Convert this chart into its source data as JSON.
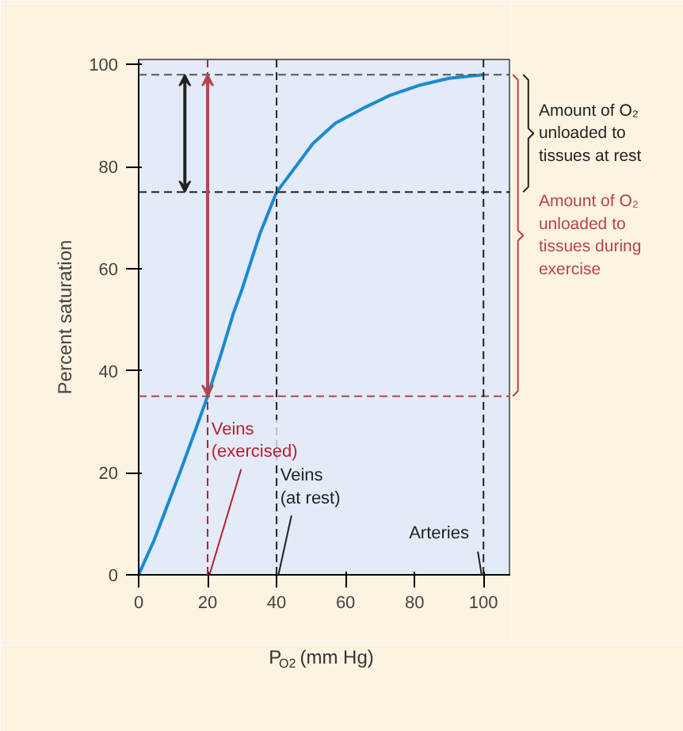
{
  "chart_data": {
    "type": "line",
    "xlabel": "P$_{O2}$ (mm Hg)",
    "ylabel": "Percent saturation",
    "xlim": [
      0,
      108
    ],
    "ylim": [
      0,
      101
    ],
    "xticks": [
      0,
      20,
      40,
      60,
      80,
      100
    ],
    "yticks": [
      0,
      20,
      40,
      60,
      80,
      100
    ],
    "grid": false,
    "series": [
      {
        "color": "#1a8ad0",
        "x": [
          0,
          4.5,
          8,
          12.1,
          16,
          20,
          24,
          27.5,
          30,
          35.2,
          40,
          45,
          50.5,
          57,
          65.9,
          73,
          81.2,
          90,
          100
        ],
        "values": [
          0,
          6.8,
          13,
          20.3,
          27.5,
          35,
          43.5,
          51.3,
          56,
          66.9,
          75,
          79.5,
          84.5,
          88.5,
          91.7,
          94,
          95.9,
          97.3,
          98
        ]
      }
    ],
    "ref_lines": [
      {
        "axis": "y",
        "value": 98,
        "color": "#555555",
        "line_style": "dashed"
      },
      {
        "axis": "y",
        "value": 75,
        "color": "#222222",
        "line_style": "dashed"
      },
      {
        "axis": "y",
        "value": 35,
        "color": "#b5444a",
        "line_style": "dashed"
      },
      {
        "axis": "x",
        "value": 20,
        "label": "Veins (exercised)",
        "color": "#b5202e",
        "line_style": "dashed"
      },
      {
        "axis": "x",
        "value": 40,
        "label": "Veins (at rest)",
        "color": "#222222",
        "line_style": "dashed"
      },
      {
        "axis": "x",
        "value": 100,
        "label": "Arteries",
        "color": "#222222",
        "line_style": "dashed"
      }
    ],
    "annotations": [
      "Amount of O₂ unloaded to tissues at rest",
      "Amount of O₂ unloaded to tissues during exercise"
    ]
  }
}
